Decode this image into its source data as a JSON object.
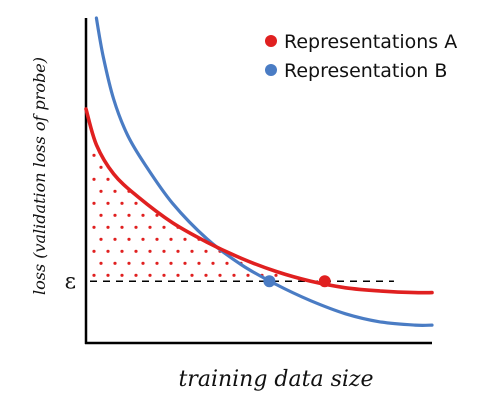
{
  "chart_data": {
    "type": "line",
    "title": "",
    "xlabel": "training data size",
    "ylabel": "loss (validation loss of probe)",
    "threshold_label": "ε",
    "xlim": [
      0,
      1
    ],
    "ylim": [
      0,
      1
    ],
    "threshold": 0.19,
    "grid": false,
    "legend_position": "top-right",
    "series": [
      {
        "name": "Representations A",
        "color": "#e02020",
        "x": [
          0.0,
          0.03,
          0.08,
          0.15,
          0.25,
          0.35,
          0.45,
          0.55,
          0.65,
          0.75,
          0.85,
          0.95,
          1.0
        ],
        "y": [
          0.72,
          0.61,
          0.52,
          0.45,
          0.37,
          0.31,
          0.26,
          0.22,
          0.19,
          0.17,
          0.16,
          0.155,
          0.155
        ],
        "marker": {
          "x": 0.69,
          "y": 0.19
        }
      },
      {
        "name": "Representation B",
        "color": "#4a7cc4",
        "x": [
          0.03,
          0.05,
          0.08,
          0.12,
          0.17,
          0.25,
          0.35,
          0.45,
          0.55,
          0.65,
          0.75,
          0.85,
          0.95,
          1.0
        ],
        "y": [
          1.0,
          0.88,
          0.75,
          0.64,
          0.55,
          0.43,
          0.32,
          0.24,
          0.18,
          0.13,
          0.09,
          0.065,
          0.055,
          0.055
        ],
        "marker": {
          "x": 0.53,
          "y": 0.19
        }
      }
    ],
    "shaded_region": {
      "between": "Representations A",
      "and": "threshold",
      "pattern": "red dots"
    }
  }
}
